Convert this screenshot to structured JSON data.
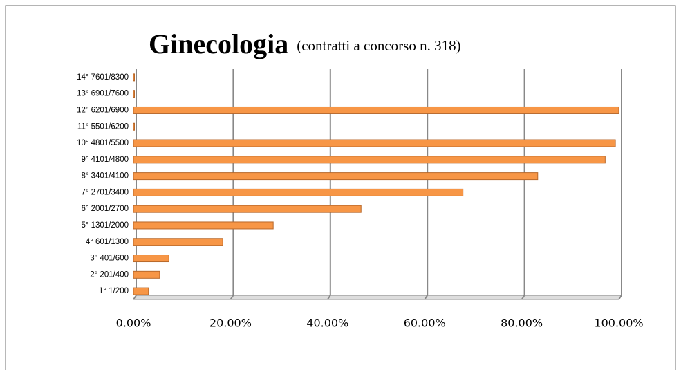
{
  "chart_data": {
    "type": "bar",
    "orientation": "horizontal",
    "title": "Ginecologia",
    "subtitle": "(contratti a concorso n. 318)",
    "categories": [
      "1° 1/200",
      "2° 201/400",
      "3° 401/600",
      "4° 601/1300",
      "5° 1301/2000",
      "6° 2001/2700",
      "7° 2701/3400",
      "8° 3401/4100",
      "9° 4101/4800",
      "10° 4801/5500",
      "11° 5501/6200",
      "12° 6201/6900",
      "13° 6901/7600",
      "14° 7601/8300"
    ],
    "values": [
      3.1,
      5.4,
      7.3,
      18.4,
      28.8,
      46.9,
      67.9,
      83.3,
      97.2,
      99.3,
      0,
      100,
      0,
      0
    ],
    "color": "#f79646",
    "xlim": [
      0,
      100
    ],
    "xticks": [
      {
        "value": 0,
        "label": "0.00%"
      },
      {
        "value": 20,
        "label": "20.00%"
      },
      {
        "value": 40,
        "label": "40.00%"
      },
      {
        "value": 60,
        "label": "60.00%"
      },
      {
        "value": 80,
        "label": "80.00%"
      },
      {
        "value": 100,
        "label": "100.00%"
      }
    ],
    "grid": true
  }
}
